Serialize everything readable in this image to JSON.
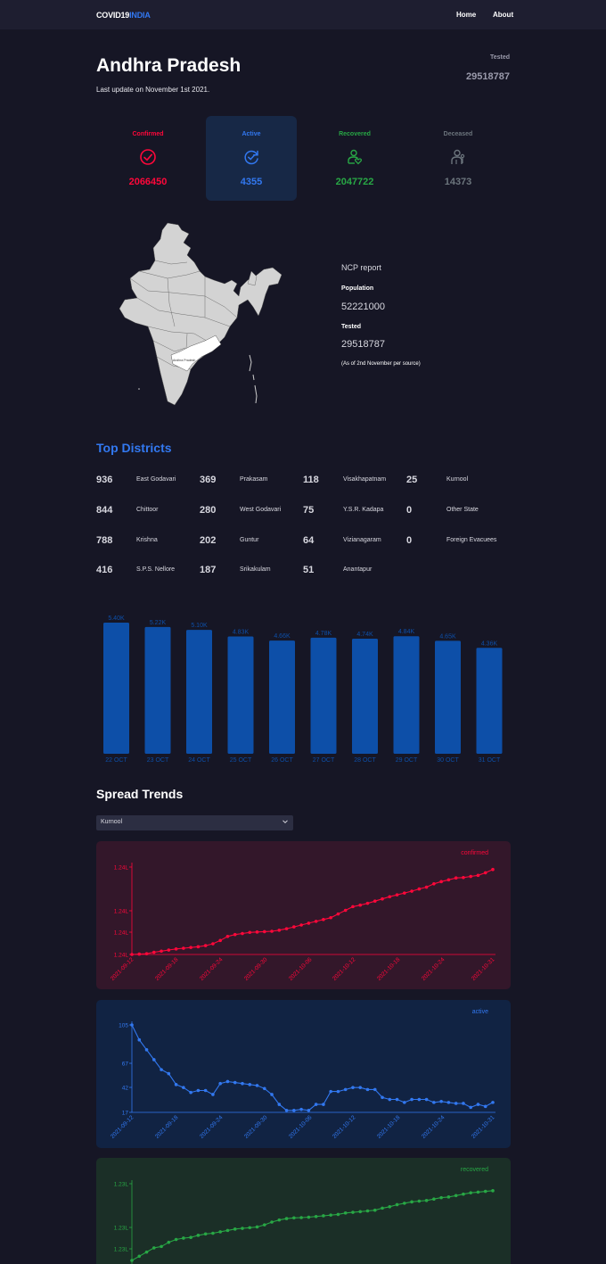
{
  "navbar": {
    "logo_main": "COVID19",
    "logo_accent": "INDIA",
    "links": [
      "Home",
      "About"
    ]
  },
  "header": {
    "state_name": "Andhra Pradesh",
    "last_update": "Last update on November 1st 2021.",
    "tested_label": "Tested",
    "tested_value": "29518787"
  },
  "stats": [
    {
      "label": "Confirmed",
      "value": "2066450",
      "color": "#ff073a",
      "icon": "check-circle-icon"
    },
    {
      "label": "Active",
      "value": "4355",
      "color": "#3278f0",
      "icon": "refresh-check-icon"
    },
    {
      "label": "Recovered",
      "value": "2047722",
      "color": "#28a745",
      "icon": "person-heart-icon"
    },
    {
      "label": "Deceased",
      "value": "14373",
      "color": "#6c757d",
      "icon": "person-flower-icon"
    }
  ],
  "map": {
    "highlight_label": "Andhra Pradesh",
    "highlight_color": "#ffffff",
    "base_color": "#d3d3d3"
  },
  "ncp": {
    "title": "NCP report",
    "population_label": "Population",
    "population_value": "52221000",
    "tested_label": "Tested",
    "tested_value": "29518787",
    "note": "(As of 2nd November per source)"
  },
  "districts": {
    "title": "Top Districts",
    "items": [
      {
        "count": "936",
        "name": "East Godavari"
      },
      {
        "count": "844",
        "name": "Chittoor"
      },
      {
        "count": "788",
        "name": "Krishna"
      },
      {
        "count": "416",
        "name": "S.P.S. Nellore"
      },
      {
        "count": "369",
        "name": "Prakasam"
      },
      {
        "count": "280",
        "name": "West Godavari"
      },
      {
        "count": "202",
        "name": "Guntur"
      },
      {
        "count": "187",
        "name": "Srikakulam"
      },
      {
        "count": "118",
        "name": "Visakhapatnam"
      },
      {
        "count": "75",
        "name": "Y.S.R. Kadapa"
      },
      {
        "count": "64",
        "name": "Vizianagaram"
      },
      {
        "count": "51",
        "name": "Anantapur"
      },
      {
        "count": "25",
        "name": "Kurnool"
      },
      {
        "count": "0",
        "name": "Other State"
      },
      {
        "count": "0",
        "name": "Foreign Evacuees"
      }
    ]
  },
  "chart_data": [
    {
      "type": "bar",
      "categories": [
        "22 OCT",
        "23 OCT",
        "24 OCT",
        "25 OCT",
        "26 OCT",
        "27 OCT",
        "28 OCT",
        "29 OCT",
        "30 OCT",
        "31 OCT"
      ],
      "values": [
        5400,
        5220,
        5100,
        4830,
        4660,
        4780,
        4740,
        4840,
        4650,
        4360
      ],
      "data_labels": [
        "5.40K",
        "5.22K",
        "5.10K",
        "4.83K",
        "4.66K",
        "4.78K",
        "4.74K",
        "4.84K",
        "4.65K",
        "4.36K"
      ],
      "color": "#0d4fa8",
      "title": "",
      "xlabel": "",
      "ylabel": ""
    },
    {
      "type": "line",
      "title": "confirmed",
      "color": "#ff073a",
      "bg": "#33172a",
      "y_ticks": [
        "1.24L",
        "1.24L",
        "1.24L",
        "1.24L"
      ],
      "x_ticks": [
        "2021-09-12",
        "2021-09-18",
        "2021-09-24",
        "2021-09-30",
        "2021-10-06",
        "2021-10-12",
        "2021-10-18",
        "2021-10-24",
        "2021-10-31"
      ],
      "x_start": "2021-09-12",
      "x_end": "2021-10-31",
      "values": [
        123200,
        123205,
        123210,
        123230,
        123245,
        123260,
        123275,
        123285,
        123295,
        123305,
        123320,
        123345,
        123390,
        123445,
        123470,
        123485,
        123500,
        123505,
        123510,
        123515,
        123530,
        123550,
        123575,
        123600,
        123625,
        123650,
        123675,
        123700,
        123750,
        123800,
        123850,
        123870,
        123895,
        123925,
        123955,
        123985,
        124010,
        124035,
        124060,
        124090,
        124115,
        124160,
        124190,
        124215,
        124240,
        124245,
        124260,
        124275,
        124310,
        124355
      ],
      "ylim": [
        123200,
        124400
      ]
    },
    {
      "type": "line",
      "title": "active",
      "color": "#3278f0",
      "bg": "#112343",
      "y_ticks": [
        "17",
        "42",
        "67",
        "105"
      ],
      "x_ticks": [
        "2021-09-12",
        "2021-09-18",
        "2021-09-24",
        "2021-09-30",
        "2021-10-06",
        "2021-10-12",
        "2021-10-18",
        "2021-10-24",
        "2021-10-31"
      ],
      "x_start": "2021-09-12",
      "x_end": "2021-10-31",
      "values": [
        105,
        90,
        80,
        70,
        60,
        56,
        45,
        42,
        37,
        39,
        39,
        35,
        46,
        48,
        47,
        46,
        45,
        44,
        41,
        35,
        25,
        19,
        19,
        20,
        19,
        25,
        25,
        38,
        38,
        40,
        42,
        42,
        40,
        40,
        32,
        30,
        30,
        27,
        30,
        30,
        30,
        27,
        28,
        27,
        26,
        26,
        22,
        25,
        23,
        27
      ],
      "ylim": [
        17,
        105
      ]
    },
    {
      "type": "line",
      "title": "recovered",
      "color": "#28a745",
      "bg": "#1b2f27",
      "y_ticks": [
        "1.23L",
        "1.23L",
        "1.23L"
      ],
      "x_start": "2021-09-12",
      "x_end": "2021-10-31",
      "values": [
        122900,
        122930,
        122960,
        122990,
        123000,
        123030,
        123050,
        123060,
        123065,
        123080,
        123090,
        123095,
        123105,
        123115,
        123125,
        123130,
        123135,
        123140,
        123155,
        123175,
        123190,
        123200,
        123205,
        123207,
        123210,
        123215,
        123220,
        123225,
        123230,
        123240,
        123245,
        123250,
        123255,
        123260,
        123275,
        123285,
        123300,
        123310,
        123320,
        123325,
        123330,
        123340,
        123350,
        123355,
        123365,
        123375,
        123385,
        123390,
        123395,
        123400
      ],
      "ylim": [
        122900,
        123450
      ]
    }
  ],
  "spread": {
    "title": "Spread Trends",
    "dropdown_value": "Kurnool"
  }
}
